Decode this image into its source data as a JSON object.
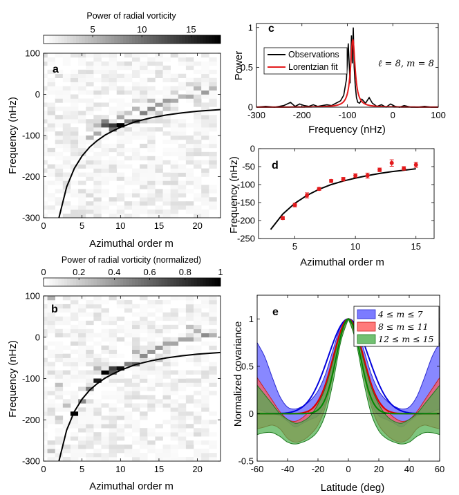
{
  "chart_data": [
    {
      "id": "a",
      "type": "heatmap",
      "panel_label": "a",
      "colorbar_title": "Power of radial vorticity",
      "colorbar_range": [
        0,
        18
      ],
      "colorbar_ticks": [
        "5",
        "10",
        "15"
      ],
      "colorbar_tick_values": [
        5,
        10,
        15
      ],
      "xlabel": "Azimuthal order m",
      "ylabel": "Frequency (nHz)",
      "xlim": [
        0,
        23
      ],
      "ylim": [
        -300,
        100
      ],
      "xticks": [
        "0",
        "5",
        "10",
        "15",
        "20"
      ],
      "xtick_values": [
        0,
        5,
        10,
        15,
        20
      ],
      "yticks": [
        "100",
        "0",
        "-100",
        "-200",
        "-300"
      ],
      "ytick_values": [
        100,
        0,
        -100,
        -200,
        -300
      ],
      "highlight_cells": [
        {
          "m": 10,
          "f": -80,
          "v": 18
        },
        {
          "m": 9,
          "f": -80,
          "v": 14
        },
        {
          "m": 8,
          "f": -80,
          "v": 12
        },
        {
          "m": 12,
          "f": -70,
          "v": 12
        },
        {
          "m": 9,
          "f": -90,
          "v": 10
        },
        {
          "m": 8,
          "f": -70,
          "v": 9
        },
        {
          "m": 11,
          "f": -70,
          "v": 9
        },
        {
          "m": 13,
          "f": -50,
          "v": 9
        },
        {
          "m": 14,
          "f": -40,
          "v": 8
        },
        {
          "m": 15,
          "f": -30,
          "v": 7
        },
        {
          "m": 16,
          "f": -20,
          "v": 7
        },
        {
          "m": 19,
          "f": -10,
          "v": 6
        },
        {
          "m": 21,
          "f": 0,
          "v": 7
        },
        {
          "m": 17,
          "f": -20,
          "v": 6
        },
        {
          "m": 7,
          "f": -100,
          "v": 6
        },
        {
          "m": 6,
          "f": -110,
          "v": 5
        },
        {
          "m": 10,
          "f": -60,
          "v": 6
        },
        {
          "m": 12,
          "f": -40,
          "v": 5
        },
        {
          "m": 18,
          "f": -10,
          "v": 5
        },
        {
          "m": 20,
          "f": 10,
          "v": 5
        },
        {
          "m": 22,
          "f": 10,
          "v": 5
        },
        {
          "m": 14,
          "f": -20,
          "v": 5
        },
        {
          "m": 16,
          "f": -40,
          "v": 4
        },
        {
          "m": 11,
          "f": -50,
          "v": 4
        },
        {
          "m": 7,
          "f": -80,
          "v": 5
        },
        {
          "m": 13,
          "f": -70,
          "v": 4
        },
        {
          "m": 15,
          "f": -50,
          "v": 4
        },
        {
          "m": 17,
          "f": 0,
          "v": 3
        },
        {
          "m": 19,
          "f": 20,
          "v": 3
        },
        {
          "m": 20,
          "f": -20,
          "v": 3
        }
      ],
      "curve": {
        "m": [
          2,
          3,
          4,
          5,
          6,
          7,
          8,
          9,
          10,
          12,
          14,
          16,
          18,
          20,
          23
        ],
        "f": [
          -300,
          -225,
          -180,
          -150,
          -128,
          -112,
          -99,
          -89,
          -80,
          -66,
          -57,
          -50,
          -45,
          -41,
          -37
        ]
      }
    },
    {
      "id": "b",
      "type": "heatmap",
      "panel_label": "b",
      "colorbar_title": "Power of radial vorticity (normalized)",
      "colorbar_range": [
        0,
        1
      ],
      "colorbar_ticks": [
        "0",
        "0.2",
        "0.4",
        "0.6",
        "0.8",
        "1"
      ],
      "colorbar_tick_values": [
        0,
        0.2,
        0.4,
        0.6,
        0.8,
        1
      ],
      "xlabel": "Azimuthal order m",
      "ylabel": "Frequency (nHz)",
      "xlim": [
        0,
        23
      ],
      "ylim": [
        -300,
        100
      ],
      "xticks": [
        "0",
        "5",
        "10",
        "15",
        "20"
      ],
      "xtick_values": [
        0,
        5,
        10,
        15,
        20
      ],
      "yticks": [
        "100",
        "0",
        "-100",
        "-200",
        "-300"
      ],
      "ytick_values": [
        100,
        0,
        -100,
        -200,
        -300
      ],
      "highlight_cells": [
        {
          "m": 4,
          "f": -190,
          "v": 1.0
        },
        {
          "m": 8,
          "f": -90,
          "v": 1.0
        },
        {
          "m": 10,
          "f": -80,
          "v": 0.95
        },
        {
          "m": 7,
          "f": -110,
          "v": 0.9
        },
        {
          "m": 9,
          "f": -80,
          "v": 0.75
        },
        {
          "m": 9,
          "f": -90,
          "v": 0.65
        },
        {
          "m": 12,
          "f": -70,
          "v": 0.6
        },
        {
          "m": 11,
          "f": -70,
          "v": 0.5
        },
        {
          "m": 6,
          "f": -130,
          "v": 0.5
        },
        {
          "m": 5,
          "f": -160,
          "v": 0.45
        },
        {
          "m": 13,
          "f": -50,
          "v": 0.45
        },
        {
          "m": 14,
          "f": -40,
          "v": 0.4
        },
        {
          "m": 15,
          "f": -30,
          "v": 0.4
        },
        {
          "m": 16,
          "f": -20,
          "v": 0.35
        },
        {
          "m": 17,
          "f": -20,
          "v": 0.35
        },
        {
          "m": 18,
          "f": -10,
          "v": 0.35
        },
        {
          "m": 19,
          "f": -10,
          "v": 0.35
        },
        {
          "m": 21,
          "f": 0,
          "v": 0.45
        },
        {
          "m": 20,
          "f": 10,
          "v": 0.3
        },
        {
          "m": 22,
          "f": 0,
          "v": 0.3
        },
        {
          "m": 1,
          "f": 90,
          "v": 0.3
        },
        {
          "m": 3,
          "f": -170,
          "v": 0.25
        },
        {
          "m": 2,
          "f": -200,
          "v": 0.2
        },
        {
          "m": 1,
          "f": -280,
          "v": 0.25
        },
        {
          "m": 12,
          "f": -40,
          "v": 0.3
        },
        {
          "m": 7,
          "f": -80,
          "v": 0.3
        },
        {
          "m": 15,
          "f": -60,
          "v": 0.25
        },
        {
          "m": 2,
          "f": -120,
          "v": 0.25
        },
        {
          "m": 19,
          "f": 20,
          "v": 0.25
        }
      ],
      "curve": {
        "m": [
          2,
          3,
          4,
          5,
          6,
          7,
          8,
          9,
          10,
          12,
          14,
          16,
          18,
          20,
          23
        ],
        "f": [
          -300,
          -225,
          -180,
          -150,
          -128,
          -112,
          -99,
          -89,
          -80,
          -66,
          -57,
          -50,
          -45,
          -41,
          -37
        ]
      }
    },
    {
      "id": "c",
      "type": "line",
      "panel_label": "c",
      "xlabel": "Frequency (nHz)",
      "ylabel": "Power",
      "xlim": [
        -300,
        100
      ],
      "ylim": [
        0,
        1.05
      ],
      "xticks": [
        "-300",
        "-200",
        "-100",
        "0",
        "100"
      ],
      "xtick_values": [
        -300,
        -200,
        -100,
        0,
        100
      ],
      "yticks": [
        "0",
        "0.5",
        "1"
      ],
      "ytick_values": [
        0,
        0.5,
        1
      ],
      "annotation": "ℓ = 8, m = 8",
      "series": [
        {
          "name": "Observations",
          "color": "#000000",
          "x": [
            -300,
            -280,
            -260,
            -240,
            -225,
            -215,
            -205,
            -195,
            -185,
            -175,
            -165,
            -155,
            -145,
            -135,
            -125,
            -115,
            -108,
            -102,
            -98,
            -94,
            -91,
            -89,
            -87,
            -85,
            -83,
            -80,
            -77,
            -73,
            -68,
            -60,
            -52,
            -45,
            -35,
            -25,
            -15,
            -5,
            5,
            15,
            25,
            40,
            55,
            70,
            85,
            100
          ],
          "y": [
            0,
            0.01,
            0,
            0.02,
            0.06,
            0.01,
            0.04,
            0.02,
            0.01,
            0.03,
            0.01,
            0.02,
            0.03,
            0.02,
            0.05,
            0.08,
            0.15,
            0.35,
            0.8,
            0.3,
            0.9,
            0.55,
            1.0,
            0.5,
            0.3,
            0.12,
            0.06,
            0.05,
            0.1,
            0.05,
            0.12,
            0.05,
            0.01,
            0.03,
            0,
            0.04,
            0.01,
            0,
            0.02,
            0,
            0,
            0.01,
            0,
            0
          ]
        },
        {
          "name": "Lorentzian fit",
          "color": "#e31a1c",
          "center": -88,
          "halfwidth": 6,
          "amplitude": 0.85
        }
      ]
    },
    {
      "id": "d",
      "type": "scatter",
      "panel_label": "d",
      "xlabel": "Azimuthal order m",
      "ylabel": "Frequency (nHz)",
      "xlim": [
        2,
        16.5
      ],
      "ylim": [
        -250,
        0
      ],
      "xticks": [
        "5",
        "10",
        "15"
      ],
      "xtick_values": [
        5,
        10,
        15
      ],
      "yticks": [
        "0",
        "-50",
        "-100",
        "-150",
        "-200",
        "-250"
      ],
      "ytick_values": [
        0,
        -50,
        -100,
        -150,
        -200,
        -250
      ],
      "points": {
        "m": [
          4,
          5,
          6,
          7,
          8,
          9,
          10,
          11,
          12,
          13,
          14,
          15
        ],
        "f": [
          -193,
          -157,
          -130,
          -112,
          -90,
          -85,
          -75,
          -75,
          -59,
          -40,
          -55,
          -45
        ],
        "err": [
          4,
          5,
          7,
          4,
          4,
          5,
          5,
          7,
          5,
          9,
          5,
          7
        ]
      },
      "curve": {
        "m": [
          3,
          4,
          5,
          6,
          7,
          8,
          9,
          10,
          11,
          12,
          13,
          14,
          15
        ],
        "f": [
          -225,
          -182,
          -152,
          -130,
          -113,
          -100,
          -90,
          -82,
          -75,
          -69,
          -64,
          -60,
          -56
        ]
      }
    },
    {
      "id": "e",
      "type": "area",
      "panel_label": "e",
      "xlabel": "Latitude (deg)",
      "ylabel": "Normalized covariance",
      "xlim": [
        -60,
        60
      ],
      "ylim": [
        -0.5,
        1.25
      ],
      "xticks": [
        "-60",
        "-40",
        "-20",
        "0",
        "20",
        "40",
        "60"
      ],
      "xtick_values": [
        -60,
        -40,
        -20,
        0,
        20,
        40,
        60
      ],
      "yticks": [
        "-0.5",
        "0",
        "0.5",
        "1"
      ],
      "ytick_values": [
        -0.5,
        0,
        0.5,
        1
      ],
      "legend": [
        {
          "label": "4 ≤ m ≤ 7",
          "color": "#5555ff"
        },
        {
          "label": "8 ≤ m ≤ 11",
          "color": "#ff5555"
        },
        {
          "label": "12 ≤ m ≤ 15",
          "color": "#44aa44"
        }
      ],
      "bands": [
        {
          "name": "4 ≤ m ≤ 7",
          "fill": "#5a5aff",
          "edge": "#2a2ad0",
          "lat": [
            0,
            5,
            10,
            15,
            20,
            25,
            30,
            35,
            40,
            45,
            50,
            55,
            60
          ],
          "upper": [
            1,
            0.92,
            0.68,
            0.42,
            0.24,
            0.14,
            0.08,
            0.05,
            0.07,
            0.18,
            0.38,
            0.6,
            0.75
          ],
          "lower": [
            1,
            0.86,
            0.5,
            0.12,
            -0.02,
            -0.06,
            -0.1,
            -0.14,
            -0.08,
            -0.02,
            0.0,
            0.02,
            0.05
          ]
        },
        {
          "name": "8 ≤ m ≤ 11",
          "fill": "#ff5a5a",
          "edge": "#c82020",
          "lat": [
            0,
            5,
            10,
            15,
            20,
            25,
            30,
            35,
            40,
            45,
            50,
            55,
            60
          ],
          "upper": [
            1,
            0.88,
            0.6,
            0.32,
            0.14,
            0.04,
            -0.04,
            -0.08,
            -0.06,
            0.02,
            0.14,
            0.26,
            0.38
          ],
          "lower": [
            1,
            0.8,
            0.42,
            0.08,
            -0.12,
            -0.22,
            -0.28,
            -0.3,
            -0.26,
            -0.16,
            -0.12,
            -0.14,
            -0.16
          ]
        },
        {
          "name": "12 ≤ m ≤ 15",
          "fill": "#4db04d",
          "edge": "#1f7a1f",
          "lat": [
            0,
            5,
            10,
            15,
            20,
            25,
            30,
            35,
            40,
            45,
            50,
            55,
            60
          ],
          "upper": [
            1,
            0.86,
            0.56,
            0.28,
            0.1,
            -0.02,
            -0.08,
            -0.1,
            -0.06,
            0.0,
            0.1,
            0.2,
            0.3
          ],
          "lower": [
            1,
            0.76,
            0.34,
            0.0,
            -0.18,
            -0.26,
            -0.3,
            -0.32,
            -0.3,
            -0.24,
            -0.2,
            -0.2,
            -0.22
          ]
        }
      ],
      "model_curves": [
        {
          "color": "#0000dd",
          "width": 6
        },
        {
          "color": "#dd0000",
          "width": 4.5
        },
        {
          "color": "#008800",
          "width": 3.6
        }
      ]
    }
  ]
}
